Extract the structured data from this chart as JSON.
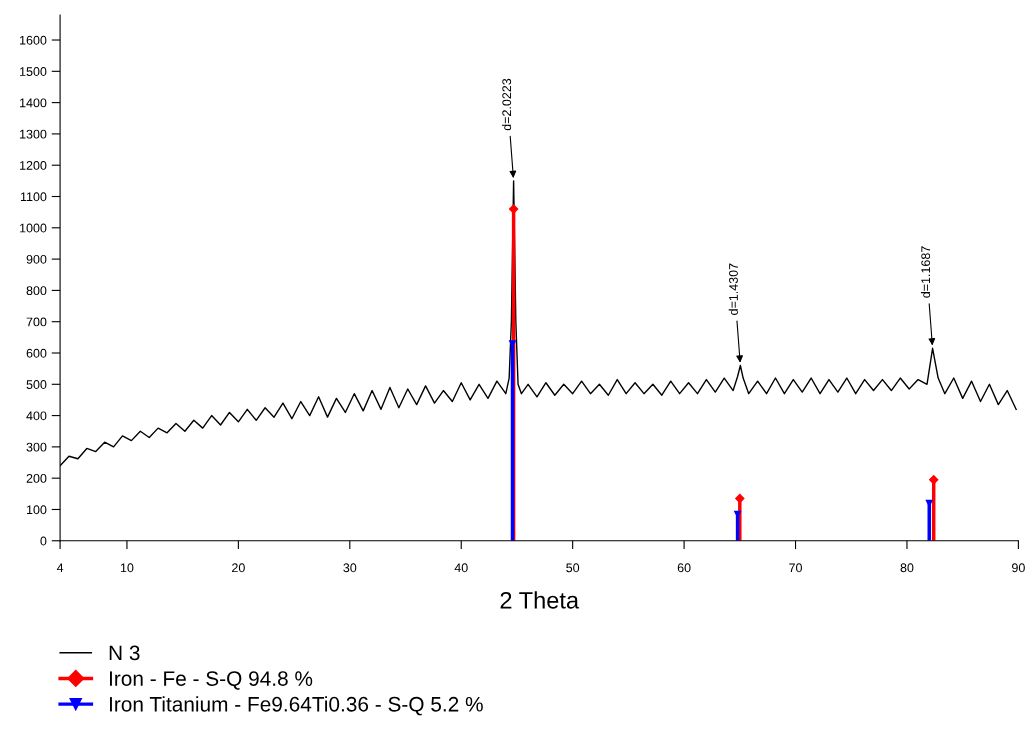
{
  "chart_data": {
    "type": "line",
    "xlabel": "2 Theta",
    "xlim": [
      4,
      90
    ],
    "ylim": [
      0,
      1680
    ],
    "xticks": [
      4,
      10,
      20,
      30,
      40,
      50,
      60,
      70,
      80,
      90
    ],
    "yticks": [
      0,
      100,
      200,
      300,
      400,
      500,
      600,
      700,
      800,
      900,
      1000,
      1100,
      1200,
      1300,
      1400,
      1500,
      1600
    ],
    "legend": "bottom left",
    "grid": false,
    "series": [
      {
        "name": "N 3",
        "color": "#000000",
        "marker": "none",
        "x": [
          4,
          4.8,
          5.6,
          6.4,
          7.2,
          8,
          8.8,
          9.6,
          10.4,
          11.2,
          12,
          12.8,
          13.6,
          14.4,
          15.2,
          16,
          16.8,
          17.6,
          18.4,
          19.2,
          20,
          20.8,
          21.6,
          22.4,
          23.2,
          24,
          24.8,
          25.6,
          26.4,
          27.2,
          28,
          28.8,
          29.6,
          30.4,
          31.2,
          32,
          32.8,
          33.6,
          34.4,
          35.2,
          36,
          36.8,
          37.6,
          38.4,
          39.2,
          40,
          40.8,
          41.6,
          42.4,
          43.2,
          44,
          44.3,
          44.5,
          44.7,
          44.9,
          45.1,
          45.4,
          46,
          46.8,
          47.6,
          48.4,
          49.2,
          50,
          50.8,
          51.6,
          52.4,
          53.2,
          54,
          54.8,
          55.6,
          56.4,
          57.2,
          58,
          58.8,
          59.6,
          60.4,
          61.2,
          62,
          62.8,
          63.6,
          64.4,
          64.8,
          65.05,
          65.3,
          65.8,
          66.6,
          67.4,
          68.2,
          69,
          69.8,
          70.6,
          71.4,
          72.2,
          73,
          73.8,
          74.6,
          75.4,
          76.2,
          77,
          77.8,
          78.6,
          79.4,
          80.2,
          81,
          81.8,
          82.3,
          82.8,
          83.4,
          84.2,
          85,
          85.8,
          86.6,
          87.4,
          88.2,
          89,
          89.8
        ],
        "values": [
          240,
          270,
          262,
          295,
          285,
          315,
          300,
          335,
          320,
          350,
          330,
          360,
          345,
          375,
          350,
          385,
          360,
          400,
          370,
          410,
          380,
          420,
          385,
          425,
          395,
          440,
          390,
          445,
          400,
          460,
          395,
          455,
          410,
          470,
          415,
          480,
          420,
          490,
          425,
          485,
          435,
          495,
          440,
          480,
          445,
          505,
          450,
          500,
          455,
          510,
          470,
          520,
          700,
          1150,
          700,
          500,
          470,
          500,
          460,
          505,
          465,
          500,
          470,
          510,
          470,
          500,
          465,
          515,
          470,
          505,
          470,
          500,
          465,
          510,
          470,
          505,
          470,
          515,
          475,
          520,
          480,
          525,
          560,
          520,
          470,
          510,
          470,
          520,
          470,
          515,
          475,
          520,
          470,
          515,
          475,
          520,
          470,
          515,
          480,
          515,
          480,
          520,
          485,
          515,
          500,
          615,
          520,
          470,
          520,
          455,
          510,
          445,
          500,
          435,
          480,
          420
        ]
      },
      {
        "name": "Iron - Fe - S-Q 94.8 %",
        "color": "#ff0000",
        "type": "lollipop",
        "marker": "diamond",
        "line_style": "solid",
        "x": [
          44.7,
          65.0,
          82.4
        ],
        "values": [
          1060,
          135,
          195
        ]
      },
      {
        "name": "Iron Titanium - Fe9.64Ti0.36 - S-Q 5.2 %",
        "color": "#0000ff",
        "type": "lollipop",
        "marker": "triangle",
        "line_style": "solid",
        "x": [
          44.6,
          64.8,
          82.0
        ],
        "values": [
          630,
          85,
          120
        ]
      }
    ],
    "annotations": [
      {
        "text": "d=2.0223",
        "x": 44.7,
        "y": 1150
      },
      {
        "text": "d=1.4307",
        "x": 65.05,
        "y": 560
      },
      {
        "text": "d=1.1687",
        "x": 82.3,
        "y": 615
      }
    ]
  }
}
